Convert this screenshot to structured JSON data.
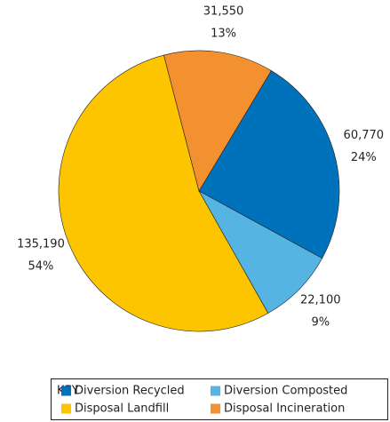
{
  "chart_data": {
    "type": "pie",
    "categories": [
      "Diversion Recycled",
      "Diversion Composted",
      "Disposal Landfill",
      "Disposal Incineration"
    ],
    "values": [
      60770,
      22100,
      135190,
      31550
    ],
    "value_labels": [
      "60,770",
      "22,100",
      "135,190",
      "31,550"
    ],
    "percent_labels": [
      "24%",
      "9%",
      "54%",
      "13%"
    ],
    "colors": [
      "#0072bc",
      "#56b4e2",
      "#fcc500",
      "#f39130"
    ],
    "legend_title": "KEY",
    "legend": "bottom"
  }
}
